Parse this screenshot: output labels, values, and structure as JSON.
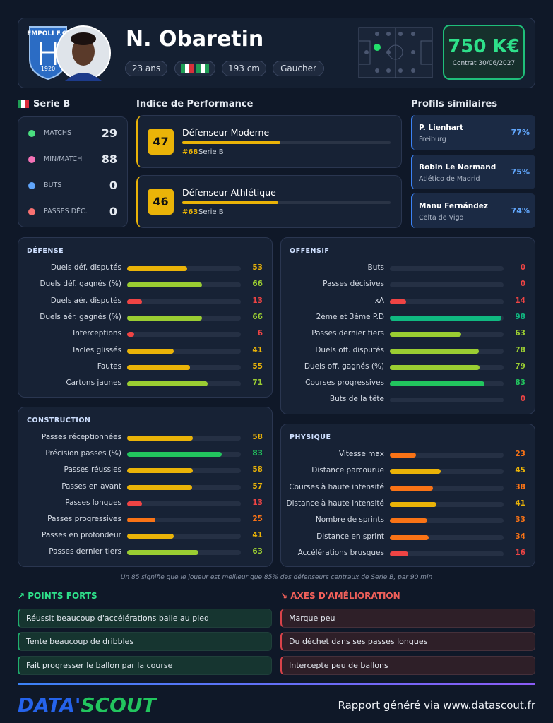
{
  "header": {
    "name": "N. Obaretin",
    "club_logo": "EMPOLI F.C.",
    "club_year": "1920",
    "age": "23 ans",
    "height": "193 cm",
    "foot": "Gaucher",
    "market_value": "750 K€",
    "contract": "Contrat 30/06/2027"
  },
  "league": "Serie B",
  "stats": [
    {
      "label": "MATCHS",
      "value": 29
    },
    {
      "label": "MIN/MATCH",
      "value": 88
    },
    {
      "label": "BUTS",
      "value": 0
    },
    {
      "label": "PASSES DÉC.",
      "value": 0
    }
  ],
  "performance": {
    "title": "Indice de Performance",
    "profiles": [
      {
        "score": 47,
        "name": "Défenseur Moderne",
        "rank": "#68",
        "league": "Serie B"
      },
      {
        "score": 46,
        "name": "Défenseur Athlétique",
        "rank": "#63",
        "league": "Serie B"
      }
    ]
  },
  "similar": {
    "title": "Profils similaires",
    "players": [
      {
        "name": "P. Lienhart",
        "club": "Freiburg",
        "match": "77%"
      },
      {
        "name": "Robin Le Normand",
        "club": "Atlético de Madrid",
        "match": "75%"
      },
      {
        "name": "Manu Fernández",
        "club": "Celta de Vigo",
        "match": "74%"
      }
    ]
  },
  "sections": [
    {
      "title": "DÉFENSE",
      "rows": [
        {
          "label": "Duels déf. disputés",
          "value": 53
        },
        {
          "label": "Duels déf. gagnés (%)",
          "value": 66
        },
        {
          "label": "Duels aér. disputés",
          "value": 13
        },
        {
          "label": "Duels aér. gagnés (%)",
          "value": 66
        },
        {
          "label": "Interceptions",
          "value": 6
        },
        {
          "label": "Tacles glissés",
          "value": 41
        },
        {
          "label": "Fautes",
          "value": 55
        },
        {
          "label": "Cartons jaunes",
          "value": 71
        }
      ]
    },
    {
      "title": "OFFENSIF",
      "rows": [
        {
          "label": "Buts",
          "value": 0
        },
        {
          "label": "Passes décisives",
          "value": 0
        },
        {
          "label": "xA",
          "value": 14
        },
        {
          "label": "2ème et 3ème P.D",
          "value": 98
        },
        {
          "label": "Passes dernier tiers",
          "value": 63
        },
        {
          "label": "Duels off. disputés",
          "value": 78
        },
        {
          "label": "Duels off. gagnés (%)",
          "value": 79
        },
        {
          "label": "Courses progressives",
          "value": 83
        },
        {
          "label": "Buts de la tête",
          "value": 0
        }
      ]
    },
    {
      "title": "CONSTRUCTION",
      "rows": [
        {
          "label": "Passes réceptionnées",
          "value": 58
        },
        {
          "label": "Précision passes (%)",
          "value": 83
        },
        {
          "label": "Passes réussies",
          "value": 58
        },
        {
          "label": "Passes en avant",
          "value": 57
        },
        {
          "label": "Passes longues",
          "value": 13
        },
        {
          "label": "Passes progressives",
          "value": 25
        },
        {
          "label": "Passes en profondeur",
          "value": 41
        },
        {
          "label": "Passes dernier tiers",
          "value": 63
        }
      ]
    },
    {
      "title": "PHYSIQUE",
      "rows": [
        {
          "label": "Vitesse max",
          "value": 23
        },
        {
          "label": "Distance parcourue",
          "value": 45
        },
        {
          "label": "Courses à haute intensité",
          "value": 38
        },
        {
          "label": "Distance à haute intensité",
          "value": 41
        },
        {
          "label": "Nombre de sprints",
          "value": 33
        },
        {
          "label": "Distance en sprint",
          "value": 34
        },
        {
          "label": "Accélérations brusques",
          "value": 16
        }
      ]
    }
  ],
  "footnote": "Un 85 signifie que le joueur est meilleur que 85% des défenseurs centraux de Serie B, par 90 min",
  "strengths": {
    "title": "POINTS FORTS",
    "items": [
      "Réussit beaucoup d'accélérations balle au pied",
      "Tente beaucoup de dribbles",
      "Fait progresser le ballon par la course"
    ]
  },
  "weaknesses": {
    "title": "AXES D'AMÉLIORATION",
    "items": [
      "Marque peu",
      "Du déchet dans ses passes longues",
      "Intercepte peu de ballons"
    ]
  },
  "footer": {
    "brand_a": "DATA'",
    "brand_b": "SCOUT",
    "text": "Rapport généré via www.datascout.fr"
  }
}
